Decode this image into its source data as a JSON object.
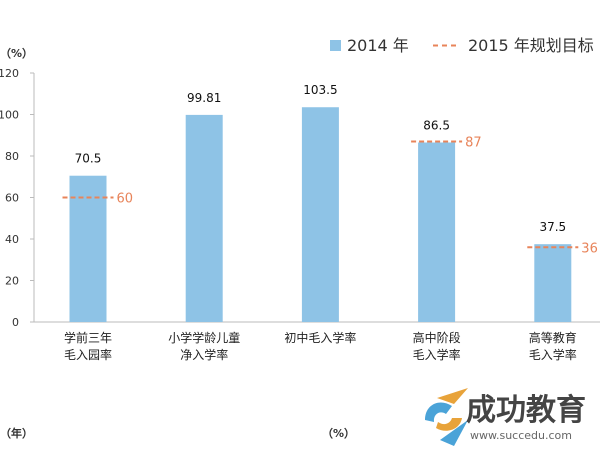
{
  "chart_data": {
    "type": "bar",
    "ylabel": "（%）",
    "ylim": [
      0,
      120
    ],
    "yticks": [
      0,
      20,
      40,
      60,
      80,
      100,
      120
    ],
    "categories": [
      [
        "学前三年",
        "毛入园率"
      ],
      [
        "小学学龄儿童",
        "净入学率"
      ],
      [
        "初中毛入学率"
      ],
      [
        "高中阶段",
        "毛入学率"
      ],
      [
        "高等教育",
        "毛入学率"
      ]
    ],
    "series": [
      {
        "name": "2014 年",
        "values": [
          70.5,
          99.81,
          103.5,
          86.5,
          37.5
        ],
        "labels": [
          "70.5",
          "99.81",
          "103.5",
          "86.5",
          "37.5"
        ]
      }
    ],
    "targets": {
      "name": "2015 年规划目标",
      "values": [
        60,
        null,
        null,
        87,
        36
      ],
      "labels": [
        "60",
        "",
        "",
        "87",
        "36"
      ]
    },
    "colors": {
      "bar": "#8ec3e6",
      "target": "#e8845a",
      "axis": "#bbbbbb"
    },
    "grid": false,
    "legend": "top-right"
  },
  "footer": {
    "left": "（年）",
    "mid": "（%）"
  },
  "watermark": {
    "text": "成功教育",
    "url": "www.succedu.com"
  }
}
